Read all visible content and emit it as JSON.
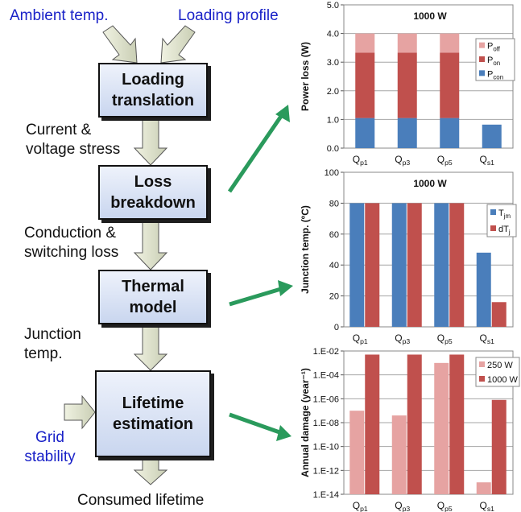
{
  "diagram": {
    "inputs": {
      "ambient": "Ambient temp.",
      "loading": "Loading profile",
      "grid": [
        "Grid",
        "stability"
      ]
    },
    "boxes": [
      [
        "Loading",
        "translation"
      ],
      [
        "Loss",
        "breakdown"
      ],
      [
        "Thermal",
        "model"
      ],
      [
        "Lifetime",
        "estimation"
      ]
    ],
    "flows": [
      [
        "Current &",
        "voltage stress"
      ],
      [
        "Conduction &",
        "switching loss"
      ],
      [
        "Junction",
        "temp."
      ]
    ],
    "output": "Consumed lifetime",
    "colors": {
      "input_text": "#1a22c8",
      "arrow_green": "#2a9a5c"
    }
  },
  "chart_data": [
    {
      "type": "bar",
      "stacked": true,
      "title": "1000 W",
      "ylabel": "Power loss (W)",
      "ylim": [
        0,
        5
      ],
      "yticks": [
        "0.0",
        "1.0",
        "2.0",
        "3.0",
        "4.0",
        "5.0"
      ],
      "categories": [
        [
          "Q",
          "p1"
        ],
        [
          "Q",
          "p3"
        ],
        [
          "Q",
          "p5"
        ],
        [
          "Q",
          "s1"
        ]
      ],
      "series": [
        {
          "name": [
            "P",
            "con"
          ],
          "color": "#4a7ebb",
          "values": [
            1.05,
            1.05,
            1.05,
            0.82
          ]
        },
        {
          "name": [
            "P",
            "on"
          ],
          "color": "#c0504d",
          "values": [
            2.28,
            2.28,
            2.28,
            0
          ]
        },
        {
          "name": [
            "P",
            "off"
          ],
          "color": "#e6a3a2",
          "values": [
            0.67,
            0.67,
            0.67,
            0
          ]
        }
      ],
      "legend": "top-right"
    },
    {
      "type": "bar",
      "title": "1000 W",
      "ylabel": "Junction temp. (ºC)",
      "ylim": [
        0,
        100
      ],
      "yticks": [
        "0",
        "20",
        "40",
        "60",
        "80",
        "100"
      ],
      "categories": [
        [
          "Q",
          "p1"
        ],
        [
          "Q",
          "p3"
        ],
        [
          "Q",
          "p5"
        ],
        [
          "Q",
          "s1"
        ]
      ],
      "series": [
        {
          "name": [
            "T",
            "jm"
          ],
          "color": "#4a7ebb",
          "values": [
            80,
            80,
            80,
            48
          ]
        },
        {
          "name": [
            "dT",
            "j"
          ],
          "color": "#c0504d",
          "values": [
            80,
            80,
            80,
            16
          ]
        }
      ],
      "legend": "top-right"
    },
    {
      "type": "bar",
      "log_scale": true,
      "title": "",
      "ylabel": "Annual damage (year⁻¹)",
      "ylim": [
        1e-14,
        0.01
      ],
      "yticks": [
        "1.E-14",
        "1.E-12",
        "1.E-10",
        "1.E-08",
        "1.E-06",
        "1.E-04",
        "1.E-02"
      ],
      "categories": [
        [
          "Q",
          "p1"
        ],
        [
          "Q",
          "p3"
        ],
        [
          "Q",
          "p5"
        ],
        [
          "Q",
          "s1"
        ]
      ],
      "series": [
        {
          "name": [
            "250 W",
            ""
          ],
          "color": "#e6a3a2",
          "values": [
            1e-07,
            4e-08,
            0.001,
            1e-13
          ]
        },
        {
          "name": [
            "1000 W",
            ""
          ],
          "color": "#c0504d",
          "values": [
            0.005,
            0.005,
            0.005,
            8e-07
          ]
        }
      ],
      "legend": "top-right"
    }
  ]
}
